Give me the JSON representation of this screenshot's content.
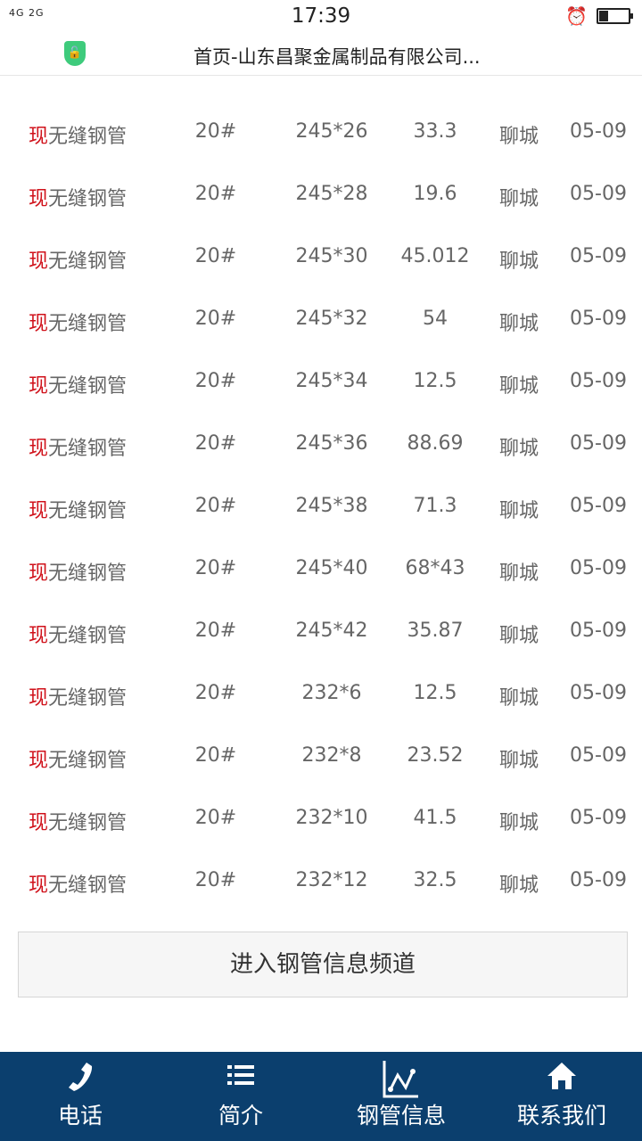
{
  "status": {
    "signal": "4G 2G",
    "time": "17:39"
  },
  "browser": {
    "title": "首页-山东昌聚金属制品有限公司..."
  },
  "rows": [
    {
      "tag": "现",
      "name": "无缝钢管",
      "grade": "20#",
      "spec": "245*26",
      "weight": "33.3",
      "place": "聊城",
      "date": "05-09"
    },
    {
      "tag": "现",
      "name": "无缝钢管",
      "grade": "20#",
      "spec": "245*28",
      "weight": "19.6",
      "place": "聊城",
      "date": "05-09"
    },
    {
      "tag": "现",
      "name": "无缝钢管",
      "grade": "20#",
      "spec": "245*30",
      "weight": "45.012",
      "place": "聊城",
      "date": "05-09"
    },
    {
      "tag": "现",
      "name": "无缝钢管",
      "grade": "20#",
      "spec": "245*32",
      "weight": "54",
      "place": "聊城",
      "date": "05-09"
    },
    {
      "tag": "现",
      "name": "无缝钢管",
      "grade": "20#",
      "spec": "245*34",
      "weight": "12.5",
      "place": "聊城",
      "date": "05-09"
    },
    {
      "tag": "现",
      "name": "无缝钢管",
      "grade": "20#",
      "spec": "245*36",
      "weight": "88.69",
      "place": "聊城",
      "date": "05-09"
    },
    {
      "tag": "现",
      "name": "无缝钢管",
      "grade": "20#",
      "spec": "245*38",
      "weight": "71.3",
      "place": "聊城",
      "date": "05-09"
    },
    {
      "tag": "现",
      "name": "无缝钢管",
      "grade": "20#",
      "spec": "245*40",
      "weight": "68*43",
      "place": "聊城",
      "date": "05-09"
    },
    {
      "tag": "现",
      "name": "无缝钢管",
      "grade": "20#",
      "spec": "245*42",
      "weight": "35.87",
      "place": "聊城",
      "date": "05-09"
    },
    {
      "tag": "现",
      "name": "无缝钢管",
      "grade": "20#",
      "spec": "232*6",
      "weight": "12.5",
      "place": "聊城",
      "date": "05-09"
    },
    {
      "tag": "现",
      "name": "无缝钢管",
      "grade": "20#",
      "spec": "232*8",
      "weight": "23.52",
      "place": "聊城",
      "date": "05-09"
    },
    {
      "tag": "现",
      "name": "无缝钢管",
      "grade": "20#",
      "spec": "232*10",
      "weight": "41.5",
      "place": "聊城",
      "date": "05-09"
    },
    {
      "tag": "现",
      "name": "无缝钢管",
      "grade": "20#",
      "spec": "232*12",
      "weight": "32.5",
      "place": "聊城",
      "date": "05-09"
    }
  ],
  "enter_button": "进入钢管信息频道",
  "nav": [
    {
      "icon": "phone-icon",
      "label": "电话"
    },
    {
      "icon": "list-icon",
      "label": "简介"
    },
    {
      "icon": "line-chart-icon",
      "label": "钢管信息"
    },
    {
      "icon": "home-icon",
      "label": "联系我们"
    }
  ],
  "colors": {
    "nav_bg": "#0b3f6e",
    "tag": "#d0121b",
    "shield": "#3ecb7c"
  }
}
